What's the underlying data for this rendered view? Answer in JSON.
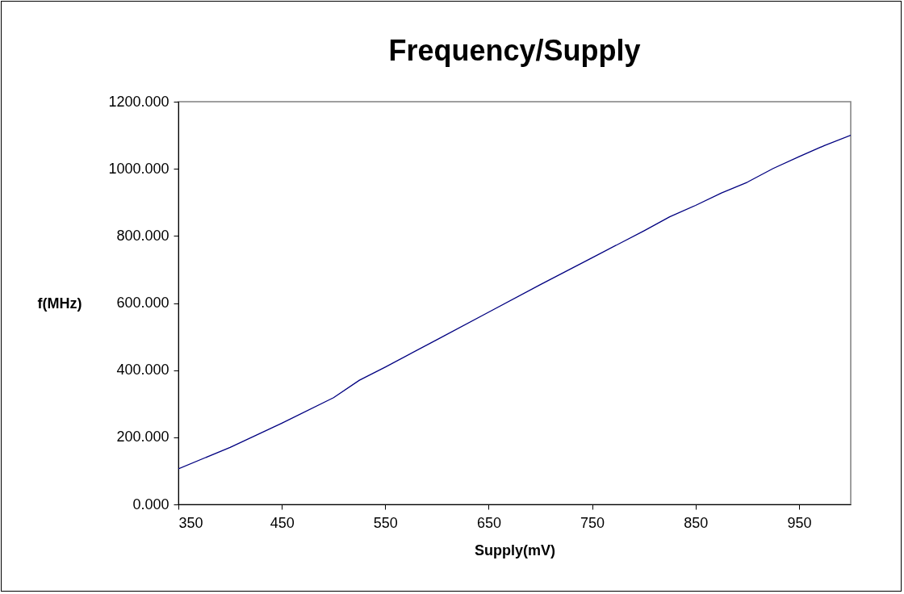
{
  "chart_data": {
    "type": "line",
    "title": "Frequency/Supply",
    "xlabel": "Supply(mV)",
    "ylabel": "f(MHz)",
    "x": [
      350,
      400,
      450,
      500,
      525,
      550,
      600,
      650,
      700,
      750,
      800,
      825,
      850,
      875,
      900,
      925,
      950,
      975,
      1000
    ],
    "series": [
      {
        "color": "#000080",
        "values": [
          106,
          170,
          242,
          318,
          370,
          409,
          491,
          573,
          655,
          735,
          815,
          857,
          891,
          928,
          960,
          1001,
          1036,
          1070,
          1100
        ]
      }
    ],
    "xlim": [
      350,
      1000
    ],
    "xticks": [
      350,
      450,
      550,
      650,
      750,
      850,
      950
    ],
    "ylim": [
      0,
      1200
    ],
    "yticks": [
      {
        "value": 0,
        "label": "0.000"
      },
      {
        "value": 200,
        "label": "200.000"
      },
      {
        "value": 400,
        "label": "400.000"
      },
      {
        "value": 600,
        "label": "600.000"
      },
      {
        "value": 800,
        "label": "800.000"
      },
      {
        "value": 1000,
        "label": "1000.000"
      },
      {
        "value": 1200,
        "label": "1200.000"
      }
    ],
    "grid": false,
    "marker": "none",
    "line_style": "solid"
  }
}
